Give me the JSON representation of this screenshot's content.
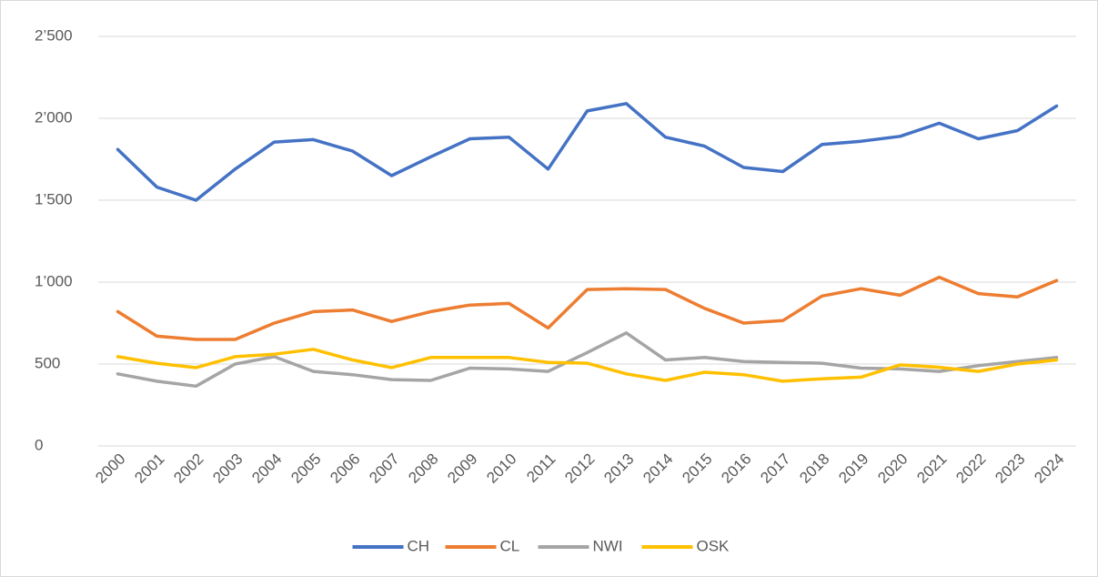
{
  "chart_data": {
    "type": "line",
    "categories": [
      "2000",
      "2001",
      "2002",
      "2003",
      "2004",
      "2005",
      "2006",
      "2007",
      "2008",
      "2009",
      "2010",
      "2011",
      "2012",
      "2013",
      "2014",
      "2015",
      "2016",
      "2017",
      "2018",
      "2019",
      "2020",
      "2021",
      "2022",
      "2023",
      "2024"
    ],
    "series": [
      {
        "name": "CH",
        "color": "#4472c4",
        "values": [
          1810,
          1580,
          1500,
          1690,
          1855,
          1870,
          1800,
          1650,
          1765,
          1875,
          1885,
          1690,
          2045,
          2090,
          1885,
          1830,
          1700,
          1675,
          1840,
          1860,
          1890,
          1970,
          1875,
          1925,
          2075
        ]
      },
      {
        "name": "CL",
        "color": "#ed7d31",
        "values": [
          820,
          670,
          650,
          650,
          750,
          820,
          830,
          760,
          820,
          860,
          870,
          720,
          955,
          960,
          955,
          840,
          750,
          765,
          915,
          960,
          920,
          1030,
          930,
          910,
          1010
        ]
      },
      {
        "name": "NWI",
        "color": "#a5a5a5",
        "values": [
          440,
          395,
          365,
          500,
          545,
          455,
          435,
          405,
          400,
          475,
          470,
          455,
          570,
          690,
          525,
          540,
          515,
          510,
          505,
          475,
          470,
          455,
          490,
          515,
          540
        ]
      },
      {
        "name": "OSK",
        "color": "#ffc000",
        "values": [
          545,
          505,
          478,
          545,
          560,
          590,
          525,
          478,
          540,
          540,
          540,
          510,
          505,
          440,
          400,
          450,
          435,
          395,
          410,
          420,
          495,
          480,
          455,
          500,
          525
        ]
      }
    ],
    "ylim": [
      0,
      2500
    ],
    "yticks": [
      0,
      500,
      {
        "value": 1000,
        "label": "1’000"
      },
      {
        "value": 1500,
        "label": "1’500"
      },
      {
        "value": 2000,
        "label": "2’000"
      },
      {
        "value": 2500,
        "label": "2’500"
      }
    ],
    "grid": true,
    "legend": "bottom"
  }
}
